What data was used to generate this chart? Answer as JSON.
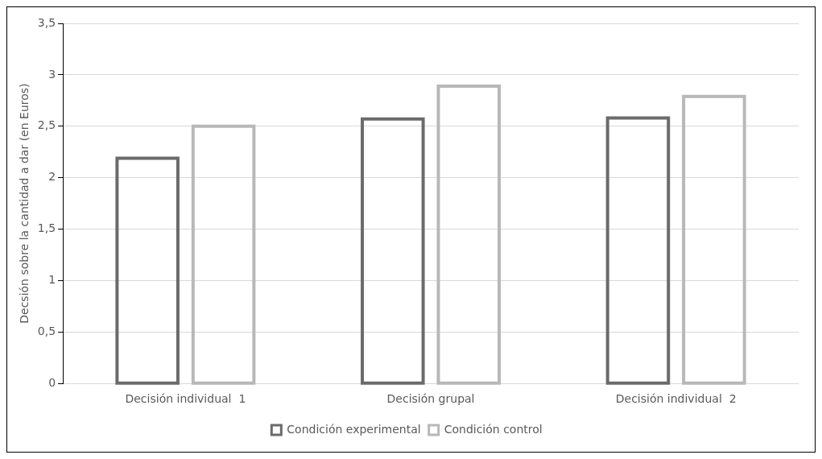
{
  "chart_data": {
    "type": "bar",
    "ylabel": "Decsión sobre la cantidad a dar (en Euros)",
    "categories": [
      "Decisión individual  1",
      "Decisión grupal",
      "Decisión individual  2"
    ],
    "series": [
      {
        "name": "Condición experimental",
        "color": "#6b6b6b",
        "values": [
          2.19,
          2.57,
          2.58
        ]
      },
      {
        "name": "Condición control",
        "color": "#b8b8b8",
        "values": [
          2.5,
          2.89,
          2.79
        ]
      }
    ],
    "ylim": [
      0,
      3.5
    ],
    "yticks": [
      0,
      {
        "value": 0.5,
        "label": "0,5"
      },
      1,
      {
        "value": 1.5,
        "label": "1,5"
      },
      2,
      {
        "value": 2.5,
        "label": "2,5"
      },
      3,
      {
        "value": 3.5,
        "label": "3,5"
      }
    ],
    "grid": "y",
    "legend": "bottom"
  }
}
